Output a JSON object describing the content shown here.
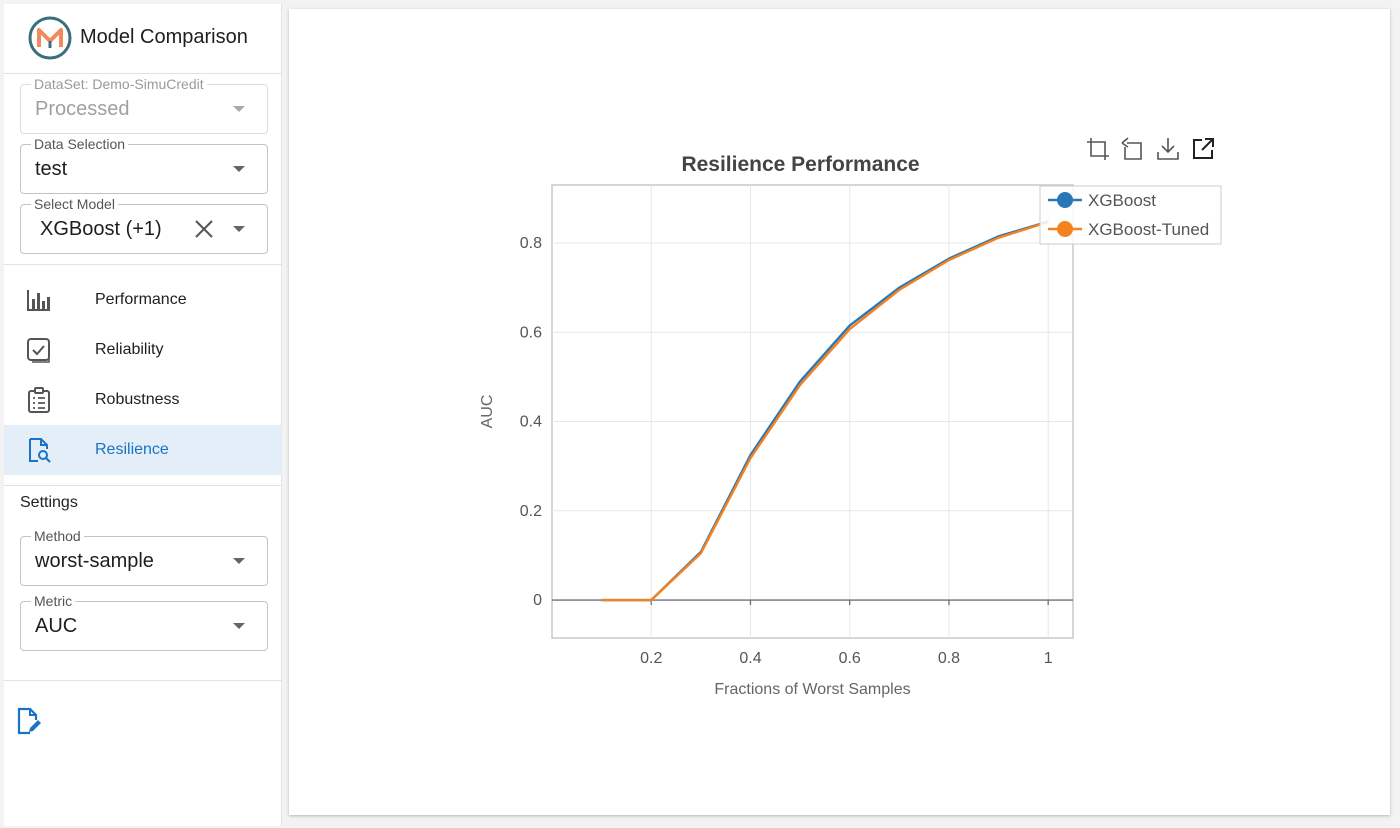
{
  "app": {
    "title": "Model Comparison"
  },
  "controls": {
    "dataset": {
      "label": "DataSet: Demo-SimuCredit",
      "value": "Processed"
    },
    "data_selection": {
      "label": "Data Selection",
      "value": "test"
    },
    "select_model": {
      "label": "Select Model",
      "value": "XGBoost (+1)"
    }
  },
  "nav": [
    {
      "label": "Performance",
      "icon": "bar-chart-icon",
      "active": false
    },
    {
      "label": "Reliability",
      "icon": "checkbox-icon",
      "active": false
    },
    {
      "label": "Robustness",
      "icon": "clipboard-list-icon",
      "active": false
    },
    {
      "label": "Resilience",
      "icon": "document-search-icon",
      "active": true
    }
  ],
  "settings": {
    "title": "Settings",
    "method": {
      "label": "Method",
      "value": "worst-sample"
    },
    "metric": {
      "label": "Metric",
      "value": "AUC"
    }
  },
  "colors": {
    "accent": "#1a73c4",
    "active_bg": "#e3eef9",
    "series1": "#2878b8",
    "series2": "#f5821f"
  },
  "chart_data": {
    "type": "line",
    "title": "Resilience Performance",
    "xlabel": "Fractions of Worst Samples",
    "ylabel": "AUC",
    "x": [
      0.1,
      0.2,
      0.3,
      0.4,
      0.5,
      0.6,
      0.7,
      0.8,
      0.9,
      1.0
    ],
    "xlim": [
      0,
      1.05
    ],
    "ylim": [
      -0.085,
      0.93
    ],
    "xticks": [
      0.2,
      0.4,
      0.6,
      0.8,
      1
    ],
    "xtick_labels": [
      "0.2",
      "0.4",
      "0.6",
      "0.8",
      "1"
    ],
    "yticks": [
      0,
      0.2,
      0.4,
      0.6,
      0.8
    ],
    "ytick_labels": [
      "0",
      "0.2",
      "0.4",
      "0.6",
      "0.8"
    ],
    "grid": true,
    "legend_position": "top-right",
    "series": [
      {
        "name": "XGBoost",
        "color": "#2878b8",
        "values": [
          0.0,
          0.0,
          0.108,
          0.325,
          0.49,
          0.615,
          0.7,
          0.765,
          0.815,
          0.848
        ]
      },
      {
        "name": "XGBoost-Tuned",
        "color": "#f5821f",
        "values": [
          0.0,
          0.0,
          0.105,
          0.318,
          0.482,
          0.607,
          0.695,
          0.762,
          0.812,
          0.847
        ]
      }
    ]
  }
}
